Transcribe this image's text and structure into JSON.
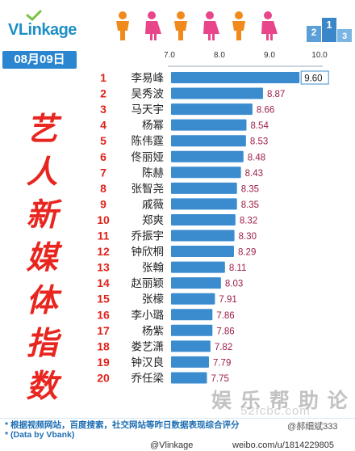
{
  "header": {
    "logo_text": "VLinkage",
    "date": "08月09日"
  },
  "title_chars": [
    "艺",
    "人",
    "新",
    "媒",
    "体",
    "指",
    "数"
  ],
  "footer": {
    "note1": "* 根据视频网站，百度搜索，社交网站等昨日数据表现综合评分",
    "note2": "* (Data by Vbank)",
    "brand": "@Vlinkage",
    "weibo": "weibo.com/u/1814229805",
    "user": "@郝细斌333",
    "watermark": "娱 乐 帮 助 论 坛",
    "watermark_url": "52fcbc.com"
  },
  "colors": {
    "bar": "#3b8ccf",
    "rank": "#e0231c",
    "value": "#9c1f45",
    "badge": "#2a86d0"
  },
  "chart_data": {
    "type": "bar",
    "orientation": "horizontal",
    "xlim": [
      7.0,
      10.0
    ],
    "xticks": [
      "7.0",
      "8.0",
      "9.0",
      "10.0"
    ],
    "ranks": [
      "1",
      "2",
      "3",
      "4",
      "5",
      "6",
      "7",
      "8",
      "9",
      "10",
      "11",
      "12",
      "13",
      "14",
      "15",
      "16",
      "17",
      "18",
      "19",
      "20"
    ],
    "categories": [
      "李易峰",
      "吴秀波",
      "马天宇",
      "杨幂",
      "陈伟霆",
      "佟丽娅",
      "陈赫",
      "张智尧",
      "戚薇",
      "郑爽",
      "乔振宇",
      "钟欣桐",
      "张翰",
      "赵丽颖",
      "张檬",
      "李小璐",
      "杨紫",
      "娄艺潇",
      "钟汉良",
      "乔任梁"
    ],
    "values": [
      9.6,
      8.87,
      8.66,
      8.54,
      8.53,
      8.48,
      8.43,
      8.35,
      8.35,
      8.32,
      8.3,
      8.29,
      8.11,
      8.03,
      7.91,
      7.86,
      7.86,
      7.82,
      7.79,
      7.75
    ],
    "labels": [
      "9.60",
      "8.87",
      "8.66",
      "8.54",
      "8.53",
      "8.48",
      "8.43",
      "8.35",
      "8.35",
      "8.32",
      "8.30",
      "8.29",
      "8.11",
      "8.03",
      "7.91",
      "7.86",
      "7.86",
      "7.82",
      "7.79",
      "7.75"
    ]
  }
}
